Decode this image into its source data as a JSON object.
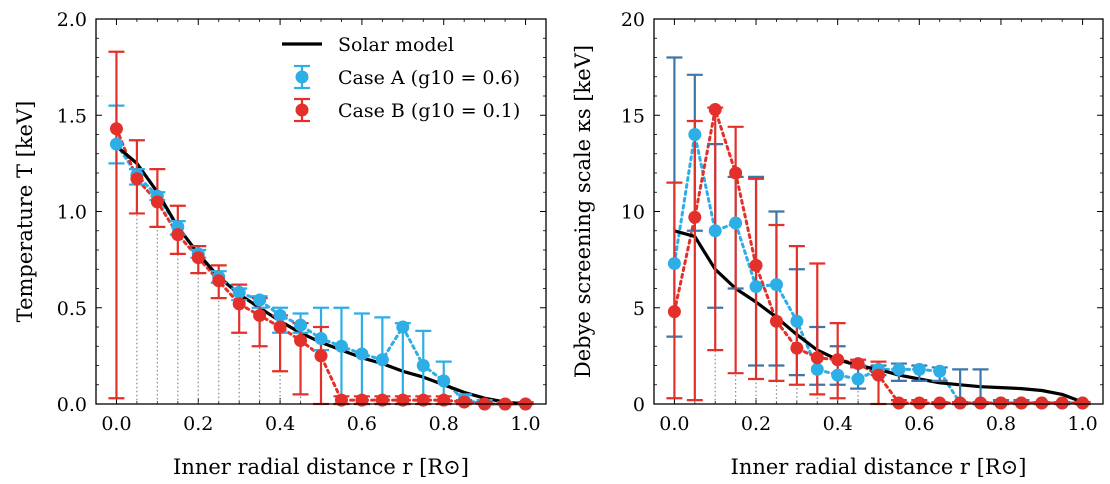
{
  "chart_data": [
    {
      "type": "line",
      "xlabel": "Inner radial distance r [R⊙]",
      "ylabel": "Temperature T [keV]",
      "xlim": [
        -0.05,
        1.05
      ],
      "ylim": [
        0,
        2.0
      ],
      "x_ticks": [
        "0.0",
        "0.2",
        "0.4",
        "0.6",
        "0.8",
        "1.0"
      ],
      "y_ticks": [
        "0.0",
        "0.5",
        "1.0",
        "1.5",
        "2.0"
      ],
      "legend": {
        "placement": "top-right",
        "entries": [
          "Solar model",
          "Case A (g10 = 0.6)",
          "Case B (g10 = 0.1)"
        ]
      },
      "colors": {
        "model": "#000000",
        "case_a": "#2eaee6",
        "case_b": "#e3302a",
        "droplines": "#888888"
      },
      "model": {
        "x": [
          0.0,
          0.05,
          0.1,
          0.15,
          0.2,
          0.25,
          0.3,
          0.35,
          0.4,
          0.45,
          0.5,
          0.55,
          0.6,
          0.65,
          0.7,
          0.75,
          0.8,
          0.85,
          0.9,
          0.95,
          1.0
        ],
        "y": [
          1.34,
          1.25,
          1.1,
          0.92,
          0.78,
          0.66,
          0.57,
          0.5,
          0.43,
          0.37,
          0.32,
          0.28,
          0.24,
          0.21,
          0.17,
          0.14,
          0.1,
          0.06,
          0.03,
          0.01,
          0.0
        ]
      },
      "series": [
        {
          "name": "Case A (g10 = 0.6)",
          "x": [
            0.0,
            0.05,
            0.1,
            0.15,
            0.2,
            0.25,
            0.3,
            0.35,
            0.4,
            0.45,
            0.5,
            0.55,
            0.6,
            0.65,
            0.7,
            0.75,
            0.8,
            0.85,
            0.9,
            0.95,
            1.0
          ],
          "y": [
            1.35,
            1.19,
            1.08,
            0.92,
            0.78,
            0.66,
            0.58,
            0.54,
            0.46,
            0.41,
            0.34,
            0.3,
            0.26,
            0.23,
            0.4,
            0.2,
            0.12,
            0.02,
            0.0,
            0.0,
            0.0
          ],
          "yerr_low": [
            1.25,
            1.14,
            1.06,
            0.88,
            0.76,
            0.63,
            0.54,
            0.5,
            0.37,
            0.37,
            0.28,
            0.0,
            0.0,
            0.0,
            0.0,
            0.0,
            0.0,
            0.0,
            0.0,
            0.0,
            0.0
          ],
          "yerr_high": [
            1.55,
            1.22,
            1.1,
            0.95,
            0.8,
            0.69,
            0.6,
            0.56,
            0.5,
            0.47,
            0.5,
            0.5,
            0.47,
            0.45,
            0.42,
            0.38,
            0.22,
            0.05,
            0.02,
            0.01,
            0.01
          ]
        },
        {
          "name": "Case B (g10 = 0.1)",
          "x": [
            0.0,
            0.05,
            0.1,
            0.15,
            0.2,
            0.25,
            0.3,
            0.35,
            0.4,
            0.45,
            0.5,
            0.55,
            0.6,
            0.65,
            0.7,
            0.75,
            0.8,
            0.85,
            0.9,
            0.95,
            1.0
          ],
          "y": [
            1.43,
            1.17,
            1.05,
            0.88,
            0.76,
            0.64,
            0.52,
            0.46,
            0.4,
            0.33,
            0.25,
            0.02,
            0.02,
            0.02,
            0.02,
            0.02,
            0.02,
            0.01,
            0.0,
            0.0,
            0.0
          ],
          "yerr_low": [
            0.03,
            0.99,
            0.92,
            0.78,
            0.68,
            0.55,
            0.37,
            0.3,
            0.17,
            0.05,
            0.0,
            0.0,
            0.0,
            0.0,
            0.0,
            0.0,
            0.0,
            0.0,
            0.0,
            0.0,
            0.0
          ],
          "yerr_high": [
            1.83,
            1.37,
            1.22,
            1.03,
            0.82,
            0.72,
            0.62,
            0.55,
            0.46,
            0.42,
            0.4,
            0.04,
            0.04,
            0.04,
            0.04,
            0.04,
            0.04,
            0.02,
            0.01,
            0.01,
            0.01
          ]
        }
      ]
    },
    {
      "type": "line",
      "xlabel": "Inner radial distance r [R⊙]",
      "ylabel": "Debye screening scale κs [keV]",
      "xlim": [
        -0.05,
        1.05
      ],
      "ylim": [
        0,
        20
      ],
      "x_ticks": [
        "0.0",
        "0.2",
        "0.4",
        "0.6",
        "0.8",
        "1.0"
      ],
      "y_ticks": [
        "0",
        "5",
        "10",
        "15",
        "20"
      ],
      "colors": {
        "model": "#000000",
        "case_a": "#2eaee6",
        "case_a_bars": "#3f76a8",
        "case_b": "#e3302a",
        "droplines": "#888888"
      },
      "model": {
        "x": [
          0.0,
          0.05,
          0.1,
          0.15,
          0.2,
          0.25,
          0.3,
          0.35,
          0.4,
          0.45,
          0.5,
          0.55,
          0.6,
          0.65,
          0.7,
          0.75,
          0.8,
          0.85,
          0.9,
          0.95,
          1.0
        ],
        "y": [
          9.0,
          8.7,
          7.0,
          6.0,
          5.3,
          4.5,
          3.6,
          2.8,
          2.3,
          2.0,
          1.8,
          1.5,
          1.3,
          1.1,
          1.0,
          0.9,
          0.85,
          0.8,
          0.7,
          0.5,
          0.1
        ]
      },
      "series": [
        {
          "name": "Case A (g10 = 0.6)",
          "x": [
            0.0,
            0.05,
            0.1,
            0.15,
            0.2,
            0.25,
            0.3,
            0.35,
            0.4,
            0.45,
            0.5,
            0.55,
            0.6,
            0.65,
            0.7,
            0.75,
            0.8,
            0.85,
            0.9,
            0.95,
            1.0
          ],
          "y": [
            7.3,
            14.0,
            9.0,
            9.4,
            6.1,
            6.2,
            4.3,
            1.8,
            1.5,
            1.3,
            1.8,
            1.8,
            1.8,
            1.7,
            0.05,
            0.05,
            0.05,
            0.05,
            0.05,
            0.05,
            0.05
          ],
          "yerr_low": [
            3.5,
            9.0,
            5.0,
            6.0,
            2.0,
            2.0,
            1.5,
            1.0,
            1.0,
            0.8,
            1.5,
            1.2,
            1.2,
            1.2,
            0.0,
            0.0,
            0.0,
            0.0,
            0.0,
            0.0,
            0.0
          ],
          "yerr_high": [
            18.0,
            17.1,
            13.5,
            11.8,
            11.8,
            10.0,
            7.0,
            4.0,
            3.0,
            2.0,
            2.0,
            2.1,
            2.0,
            1.9,
            1.8,
            1.8,
            0.2,
            0.2,
            0.1,
            0.1,
            0.1
          ]
        },
        {
          "name": "Case B (g10 = 0.1)",
          "x": [
            0.0,
            0.05,
            0.1,
            0.15,
            0.2,
            0.25,
            0.3,
            0.35,
            0.4,
            0.45,
            0.5,
            0.55,
            0.6,
            0.65,
            0.7,
            0.75,
            0.8,
            0.85,
            0.9,
            0.95,
            1.0
          ],
          "y": [
            4.8,
            9.7,
            15.3,
            12.0,
            7.2,
            4.3,
            2.9,
            2.4,
            2.3,
            2.1,
            1.5,
            0.05,
            0.05,
            0.05,
            0.05,
            0.05,
            0.05,
            0.05,
            0.05,
            0.05,
            0.05
          ],
          "yerr_low": [
            0.3,
            0.2,
            2.8,
            1.6,
            1.3,
            1.2,
            1.0,
            0.5,
            0.3,
            1.9,
            0.0,
            0.0,
            0.0,
            0.0,
            0.0,
            0.0,
            0.0,
            0.0,
            0.0,
            0.0,
            0.0
          ],
          "yerr_high": [
            11.5,
            14.7,
            15.4,
            14.4,
            11.7,
            9.3,
            8.2,
            7.3,
            4.2,
            2.3,
            2.2,
            0.2,
            0.2,
            0.1,
            0.1,
            0.1,
            0.1,
            0.1,
            0.1,
            0.1,
            0.1
          ]
        }
      ]
    }
  ]
}
